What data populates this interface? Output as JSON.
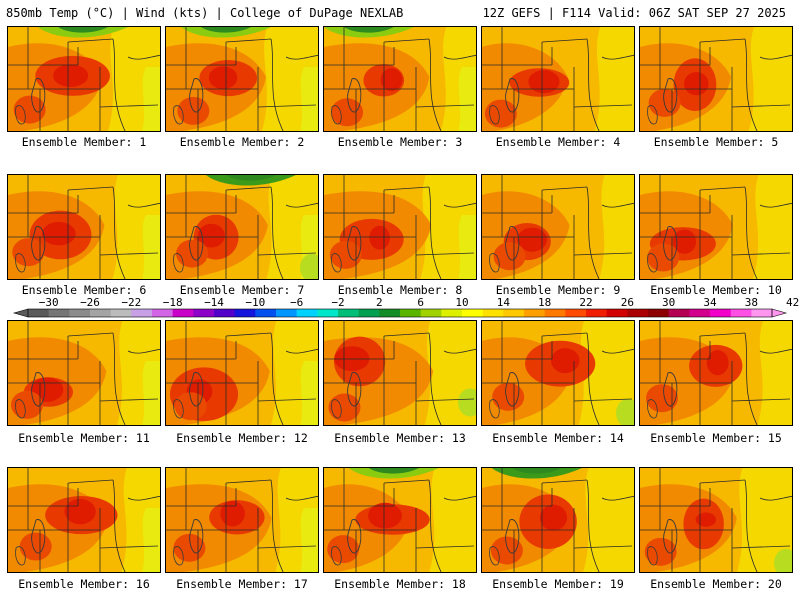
{
  "header": {
    "left": "850mb Temp (°C) | Wind (kts) | College of DuPage NEXLAB",
    "right": "12Z GEFS | F114 Valid: 06Z SAT SEP 27 2025"
  },
  "members": [
    {
      "label": "Ensemble Member: 1"
    },
    {
      "label": "Ensemble Member: 2"
    },
    {
      "label": "Ensemble Member: 3"
    },
    {
      "label": "Ensemble Member: 4"
    },
    {
      "label": "Ensemble Member: 5"
    },
    {
      "label": "Ensemble Member: 6"
    },
    {
      "label": "Ensemble Member: 7"
    },
    {
      "label": "Ensemble Member: 8"
    },
    {
      "label": "Ensemble Member: 9"
    },
    {
      "label": "Ensemble Member: 10"
    },
    {
      "label": "Ensemble Member: 11"
    },
    {
      "label": "Ensemble Member: 12"
    },
    {
      "label": "Ensemble Member: 13"
    },
    {
      "label": "Ensemble Member: 14"
    },
    {
      "label": "Ensemble Member: 15"
    },
    {
      "label": "Ensemble Member: 16"
    },
    {
      "label": "Ensemble Member: 17"
    },
    {
      "label": "Ensemble Member: 18"
    },
    {
      "label": "Ensemble Member: 19"
    },
    {
      "label": "Ensemble Member: 20"
    }
  ],
  "colorbar": {
    "ticks": [
      "−30",
      "−26",
      "−22",
      "−18",
      "−14",
      "−10",
      "−6",
      "−2",
      "2",
      "6",
      "10",
      "14",
      "18",
      "22",
      "26",
      "30",
      "34",
      "38",
      "42"
    ],
    "colors": [
      "#5a5a5a",
      "#767676",
      "#8c8c8c",
      "#a4a4a4",
      "#bcbcbc",
      "#c8a0e6",
      "#d264e6",
      "#c800c8",
      "#8c00c8",
      "#5000c8",
      "#1414dc",
      "#0050f0",
      "#0096ff",
      "#00d2ff",
      "#00e6c8",
      "#00be78",
      "#00a050",
      "#148c28",
      "#5ab400",
      "#a0d200",
      "#dcf000",
      "#ffff00",
      "#ffe100",
      "#ffc800",
      "#ffa000",
      "#ff7800",
      "#ff4b00",
      "#f01e00",
      "#d20000",
      "#aa0000",
      "#8c0000",
      "#b40050",
      "#d2008c",
      "#f000c8",
      "#ff50e6",
      "#ff96f0"
    ]
  }
}
